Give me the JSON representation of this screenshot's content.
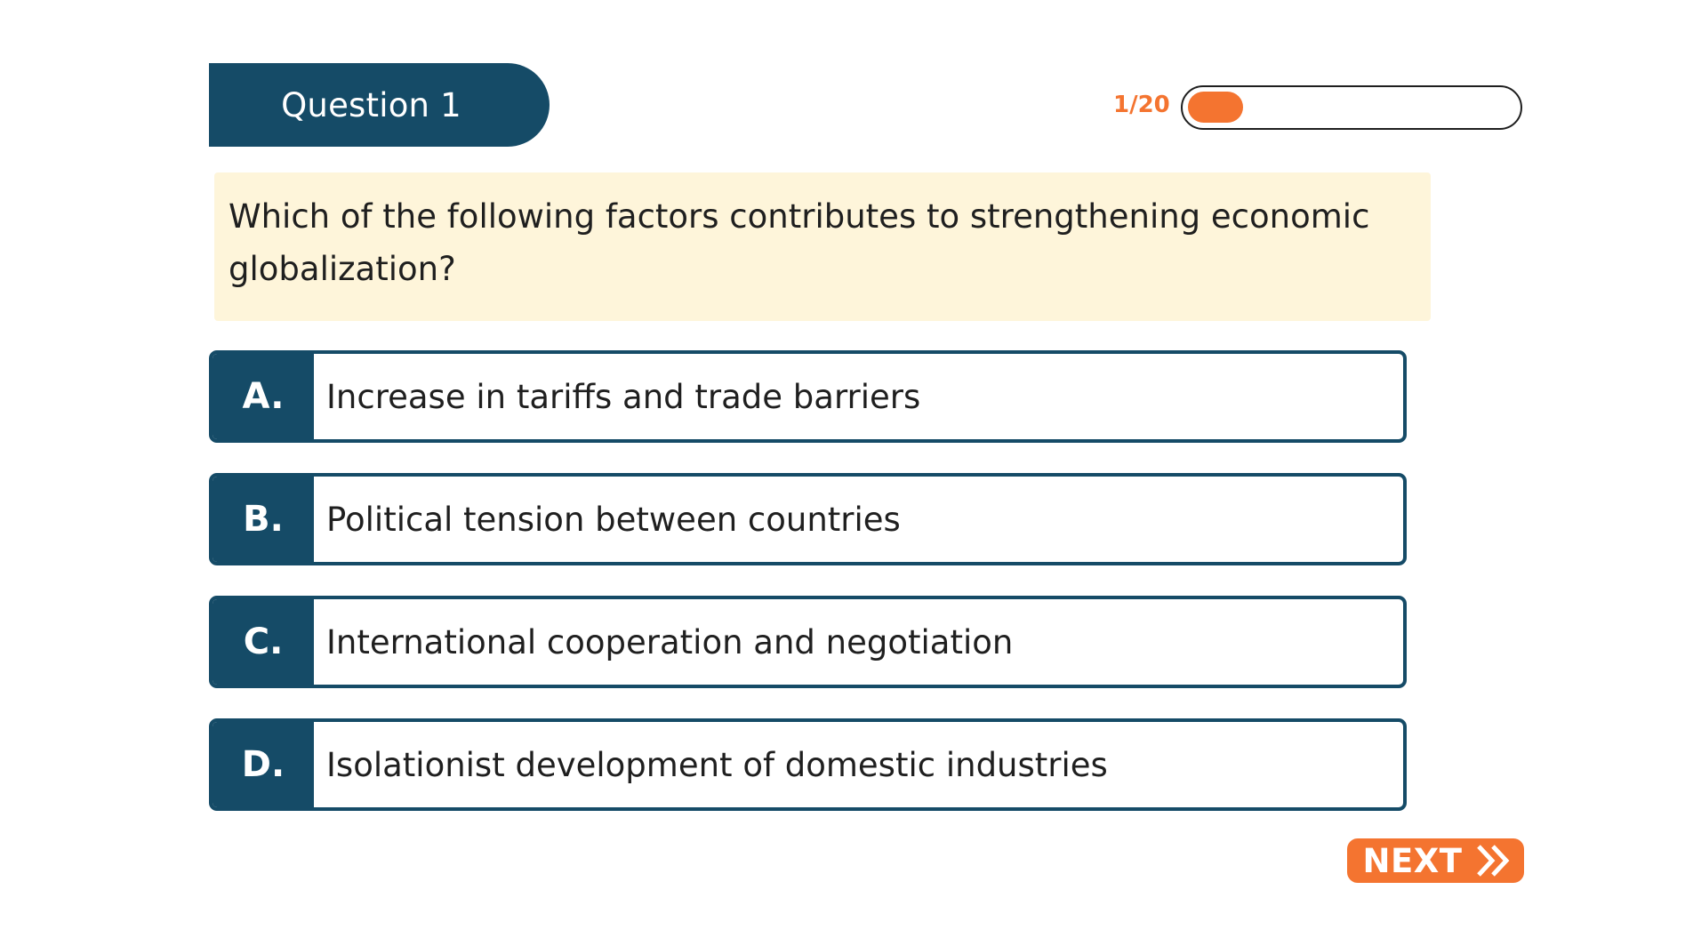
{
  "header": {
    "question_label": "Question 1"
  },
  "progress": {
    "label": "1/20",
    "current": 1,
    "total": 20,
    "fraction": 0.05
  },
  "question": {
    "text": "Which of the following factors contributes to strengthening economic globalization?"
  },
  "options": [
    {
      "letter": "A.",
      "text": "Increase in tariffs and trade barriers"
    },
    {
      "letter": "B.",
      "text": "Political tension between countries"
    },
    {
      "letter": "C.",
      "text": "International cooperation and negotiation"
    },
    {
      "letter": "D.",
      "text": "Isolationist development of domestic industries"
    }
  ],
  "next_button": {
    "label": "NEXT",
    "icon": "double-chevron-right-icon"
  },
  "colors": {
    "primary": "#154b67",
    "accent": "#f47430",
    "question_background": "#fef5da"
  }
}
